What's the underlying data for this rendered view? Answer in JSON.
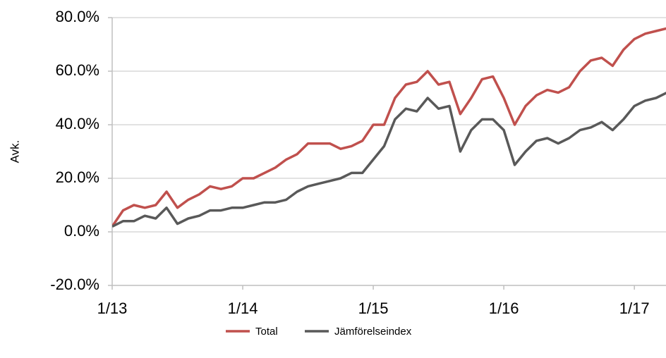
{
  "chart_data": {
    "type": "line",
    "y_label": "Avk.",
    "x": [
      "1/13",
      "2/13",
      "3/13",
      "4/13",
      "5/13",
      "6/13",
      "7/13",
      "8/13",
      "9/13",
      "10/13",
      "11/13",
      "12/13",
      "1/14",
      "2/14",
      "3/14",
      "4/14",
      "5/14",
      "6/14",
      "7/14",
      "8/14",
      "9/14",
      "10/14",
      "11/14",
      "12/14",
      "1/15",
      "2/15",
      "3/15",
      "4/15",
      "5/15",
      "6/15",
      "7/15",
      "8/15",
      "9/15",
      "10/15",
      "11/15",
      "12/15",
      "1/16",
      "2/16",
      "3/16",
      "4/16",
      "5/16",
      "6/16",
      "7/16",
      "8/16",
      "9/16",
      "10/16",
      "11/16",
      "12/16",
      "1/17",
      "2/17",
      "3/17",
      "4/17"
    ],
    "x_tick_indices": [
      0,
      12,
      24,
      36,
      48
    ],
    "series": [
      {
        "name": "Total",
        "color": "#c0504d",
        "values": [
          2,
          8,
          10,
          9,
          10,
          15,
          9,
          12,
          14,
          17,
          16,
          17,
          20,
          20,
          22,
          24,
          27,
          29,
          33,
          33,
          33,
          31,
          32,
          34,
          40,
          40,
          50,
          55,
          56,
          60,
          55,
          56,
          44,
          50,
          57,
          58,
          50,
          40,
          47,
          51,
          53,
          52,
          54,
          60,
          64,
          65,
          62,
          68,
          72,
          74,
          75,
          76
        ]
      },
      {
        "name": "Jämförelseindex",
        "color": "#595959",
        "values": [
          2,
          4,
          4,
          6,
          5,
          9,
          3,
          5,
          6,
          8,
          8,
          9,
          9,
          10,
          11,
          11,
          12,
          15,
          17,
          18,
          19,
          20,
          22,
          22,
          27,
          32,
          42,
          46,
          45,
          50,
          46,
          47,
          30,
          38,
          42,
          42,
          38,
          25,
          30,
          34,
          35,
          33,
          35,
          38,
          39,
          41,
          38,
          42,
          47,
          49,
          50,
          52
        ]
      }
    ],
    "ylim": [
      -20,
      80
    ],
    "yticks": [
      {
        "value": -20,
        "label": "-20.0%"
      },
      {
        "value": 0,
        "label": "0.0%"
      },
      {
        "value": 20,
        "label": "20.0%"
      },
      {
        "value": 40,
        "label": "40.0%"
      },
      {
        "value": 60,
        "label": "60.0%"
      },
      {
        "value": 80,
        "label": "80.0%"
      }
    ],
    "grid": true
  }
}
